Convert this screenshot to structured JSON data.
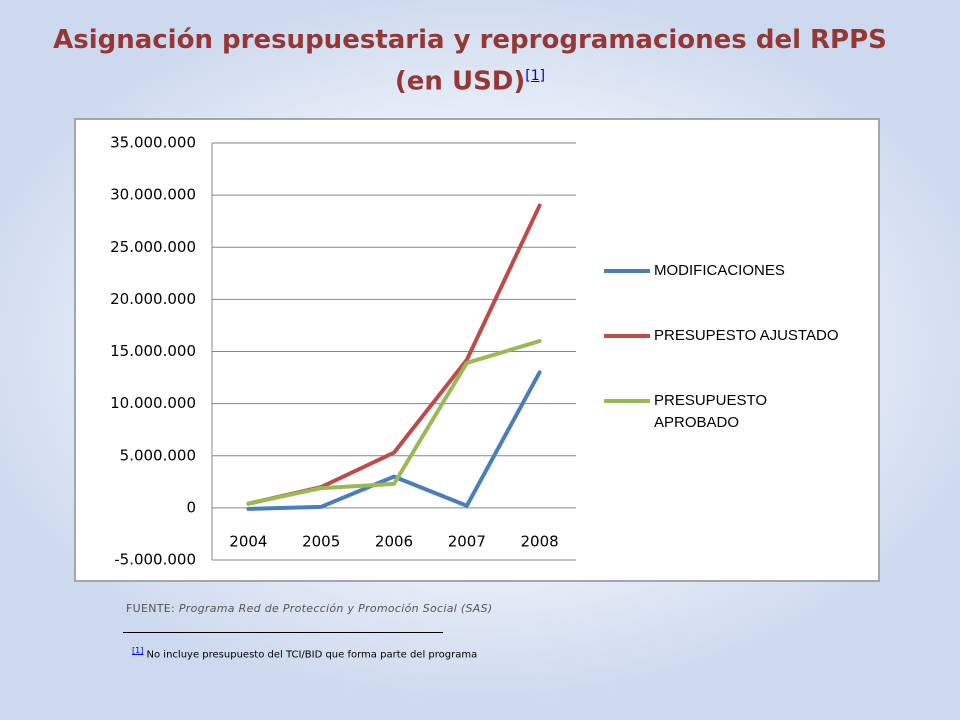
{
  "header": {
    "title_line1": "Asignación presupuestaria y reprogramaciones del RPPS",
    "title_line2": "(en USD)",
    "title_note": "[1]"
  },
  "chart_data": {
    "type": "line",
    "categories": [
      "2004",
      "2005",
      "2006",
      "2007",
      "2008"
    ],
    "series": [
      {
        "name": "MODIFICACIONES",
        "color": "#4a7ebb",
        "values": [
          -100000,
          100000,
          3000000,
          200000,
          13000000
        ]
      },
      {
        "name": "PRESUPESTO AJUSTADO",
        "color": "#be4b48",
        "values": [
          400000,
          2000000,
          5300000,
          14200000,
          29000000
        ]
      },
      {
        "name": "PRESUPUESTO APROBADO",
        "color": "#98b954",
        "values": [
          400000,
          1900000,
          2300000,
          13900000,
          16000000
        ]
      }
    ],
    "ylim": [
      -5000000,
      35000000
    ],
    "yticks": [
      {
        "value": -5000000,
        "label": "-5.000.000"
      },
      0,
      {
        "value": 5000000,
        "label": "5.000.000"
      },
      {
        "value": 10000000,
        "label": "10.000.000"
      },
      {
        "value": 15000000,
        "label": "15.000.000"
      },
      {
        "value": 20000000,
        "label": "20.000.000"
      },
      {
        "value": 25000000,
        "label": "25.000.000"
      },
      {
        "value": 30000000,
        "label": "30.000.000"
      },
      {
        "value": 35000000,
        "label": "35.000.000"
      }
    ],
    "grid": true,
    "legend": "right"
  },
  "source": {
    "label": "FUENTE:",
    "text": "Programa Red de Protección y Promoción Social (SAS)"
  },
  "footnote": {
    "marker": "[1]",
    "text": "No incluye presupuesto del TCI/BID que forma parte del programa"
  }
}
